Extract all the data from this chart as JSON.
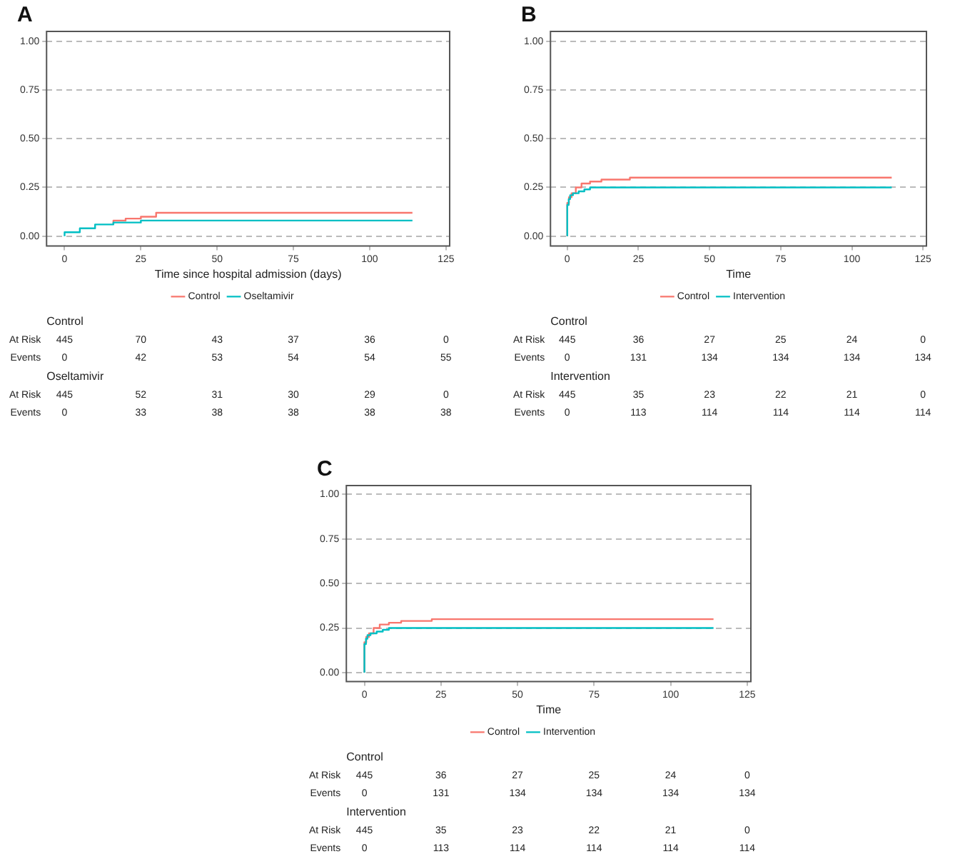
{
  "chart_data": [
    {
      "type": "step",
      "title": "A",
      "xlabel": "Time since hospital admission (days)",
      "xlim": [
        -5.9,
        126.2
      ],
      "xticks": [
        0,
        25,
        50,
        75,
        100,
        125
      ],
      "ylim": [
        -0.05,
        1.05
      ],
      "yticks": [
        {
          "value": 0,
          "label": "0.00"
        },
        {
          "value": 0.25,
          "label": "0.25"
        },
        {
          "value": 0.5,
          "label": "0.50"
        },
        {
          "value": 0.75,
          "label": "0.75"
        },
        {
          "value": 1,
          "label": "1.00"
        }
      ],
      "grid": "y",
      "legend": "bottom",
      "series": [
        {
          "name": "Control",
          "color": "#f8766d",
          "x": [
            16,
            20,
            25,
            30,
            38,
            114
          ],
          "values": [
            0.06,
            0.08,
            0.09,
            0.1,
            0.12,
            0.12
          ]
        },
        {
          "name": "Oseltamivir",
          "color": "#00bfc4",
          "x": [
            0,
            5,
            10,
            16,
            25,
            35,
            47,
            114
          ],
          "values": [
            0,
            0.02,
            0.04,
            0.06,
            0.07,
            0.08,
            0.08,
            0.08
          ]
        }
      ],
      "annotations": [
        "Control",
        "At Risk",
        "445",
        "70",
        "43",
        "37",
        "36",
        "0",
        "Events",
        "0",
        "42",
        "53",
        "54",
        "54",
        "55",
        "Oseltamivir",
        "At Risk",
        "445",
        "52",
        "31",
        "30",
        "29",
        "0",
        "Events",
        "0",
        "33",
        "38",
        "38",
        "38",
        "38"
      ]
    },
    {
      "type": "step",
      "title": "B",
      "xlabel": "Time",
      "xlim": [
        -5.9,
        126.2
      ],
      "xticks": [
        0,
        25,
        50,
        75,
        100,
        125
      ],
      "ylim": [
        -0.05,
        1.05
      ],
      "yticks": [
        {
          "value": 0,
          "label": "0.00"
        },
        {
          "value": 0.25,
          "label": "0.25"
        },
        {
          "value": 0.5,
          "label": "0.50"
        },
        {
          "value": 0.75,
          "label": "0.75"
        },
        {
          "value": 1,
          "label": "1.00"
        }
      ],
      "grid": "y",
      "legend": "bottom",
      "series": [
        {
          "name": "Control",
          "color": "#f8766d",
          "x": [
            0,
            0.6,
            1.5,
            3,
            5,
            8,
            12,
            22,
            30,
            114
          ],
          "values": [
            0,
            0.17,
            0.2,
            0.22,
            0.25,
            0.27,
            0.28,
            0.29,
            0.3,
            0.3
          ]
        },
        {
          "name": "Intervention",
          "color": "#00bfc4",
          "x": [
            0,
            0.5,
            1,
            2,
            4,
            6,
            8,
            15,
            114
          ],
          "values": [
            0,
            0.16,
            0.19,
            0.21,
            0.22,
            0.23,
            0.24,
            0.25,
            0.25
          ]
        }
      ],
      "annotations": [
        "Control",
        "At Risk",
        "445",
        "36",
        "27",
        "25",
        "24",
        "0",
        "Events",
        "0",
        "131",
        "134",
        "134",
        "134",
        "134",
        "Intervention",
        "At Risk",
        "445",
        "35",
        "23",
        "22",
        "21",
        "0",
        "Events",
        "0",
        "113",
        "114",
        "114",
        "114",
        "114"
      ]
    },
    {
      "type": "step",
      "title": "C",
      "xlabel": "Time",
      "xlim": [
        -5.9,
        126.2
      ],
      "xticks": [
        0,
        25,
        50,
        75,
        100,
        125
      ],
      "ylim": [
        -0.05,
        1.05
      ],
      "yticks": [
        {
          "value": 0,
          "label": "0.00"
        },
        {
          "value": 0.25,
          "label": "0.25"
        },
        {
          "value": 0.5,
          "label": "0.50"
        },
        {
          "value": 0.75,
          "label": "0.75"
        },
        {
          "value": 1,
          "label": "1.00"
        }
      ],
      "grid": "y",
      "legend": "bottom",
      "series": [
        {
          "name": "Control",
          "color": "#f8766d",
          "x": [
            0,
            0.6,
            1.5,
            3,
            5,
            8,
            12,
            22,
            30,
            114
          ],
          "values": [
            0,
            0.17,
            0.2,
            0.22,
            0.25,
            0.27,
            0.28,
            0.29,
            0.3,
            0.3
          ]
        },
        {
          "name": "Intervention",
          "color": "#00bfc4",
          "x": [
            0,
            0.5,
            1,
            2,
            4,
            6,
            8,
            15,
            114
          ],
          "values": [
            0,
            0.16,
            0.19,
            0.21,
            0.22,
            0.23,
            0.24,
            0.25,
            0.25
          ]
        }
      ],
      "annotations": [
        "Control",
        "At Risk",
        "445",
        "36",
        "27",
        "25",
        "24",
        "0",
        "Events",
        "0",
        "131",
        "134",
        "134",
        "134",
        "134",
        "Intervention",
        "At Risk",
        "445",
        "35",
        "23",
        "22",
        "21",
        "0",
        "Events",
        "0",
        "113",
        "114",
        "114",
        "114",
        "114"
      ]
    }
  ]
}
